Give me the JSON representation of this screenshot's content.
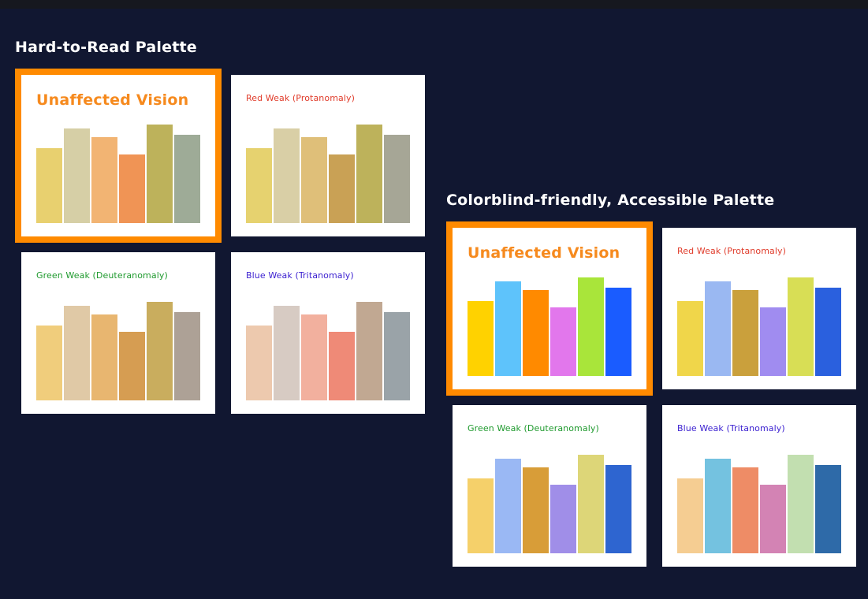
{
  "groups": [
    {
      "title": "Hard-to-Read Palette",
      "cards": [
        {
          "title": "Unaffected Vision",
          "title_color": "#f68a1e",
          "highlighted": true,
          "colors": [
            "#e8d06f",
            "#d6cfa6",
            "#f2b473",
            "#f09455",
            "#bdb25b",
            "#9eab97"
          ]
        },
        {
          "title": "Red Weak (Protanomaly)",
          "title_color": "#e03c2b",
          "highlighted": false,
          "colors": [
            "#e6d26f",
            "#d9cfa6",
            "#dfbf79",
            "#c9a155",
            "#bdb25b",
            "#a6a696"
          ]
        },
        {
          "title": "Green Weak (Deuteranomaly)",
          "title_color": "#1f9a2e",
          "highlighted": false,
          "colors": [
            "#f0cd7c",
            "#e0c9a6",
            "#e8b670",
            "#d69d52",
            "#c9ad5e",
            "#ada196"
          ]
        },
        {
          "title": "Blue Weak (Tritanomaly)",
          "title_color": "#3a1fd0",
          "highlighted": false,
          "colors": [
            "#edc9ae",
            "#d7cbc3",
            "#f2b09e",
            "#ef8a77",
            "#c1a892",
            "#9aa3a8"
          ]
        }
      ]
    },
    {
      "title": "Colorblind-friendly, Accessible Palette",
      "cards": [
        {
          "title": "Unaffected Vision",
          "title_color": "#f68a1e",
          "highlighted": true,
          "colors": [
            "#ffd200",
            "#5ec3fb",
            "#ff8a00",
            "#e277ec",
            "#a9e53a",
            "#1a5cff"
          ]
        },
        {
          "title": "Red Weak (Protanomaly)",
          "title_color": "#e03c2b",
          "highlighted": false,
          "colors": [
            "#f0d64a",
            "#9ab8f2",
            "#caa03c",
            "#a08cf0",
            "#d8de55",
            "#2a60de"
          ]
        },
        {
          "title": "Green Weak (Deuteranomaly)",
          "title_color": "#1f9a2e",
          "highlighted": false,
          "colors": [
            "#f5d06a",
            "#9ab8f4",
            "#d89d38",
            "#a08ee8",
            "#ddd678",
            "#2e65d0"
          ]
        },
        {
          "title": "Blue Weak (Tritanomaly)",
          "title_color": "#3a1fd0",
          "highlighted": false,
          "colors": [
            "#f5cd92",
            "#74c2e0",
            "#ee8c66",
            "#d383b4",
            "#c2dfb0",
            "#2e6aa8"
          ]
        }
      ]
    }
  ],
  "chart_data": [
    {
      "type": "bar",
      "title": "Unaffected Vision",
      "values": [
        95,
        120,
        109,
        87,
        125,
        112
      ]
    },
    {
      "type": "bar",
      "title": "Red Weak (Protanomaly)",
      "values": [
        95,
        120,
        109,
        87,
        125,
        112
      ]
    },
    {
      "type": "bar",
      "title": "Green Weak (Deuteranomaly)",
      "values": [
        95,
        120,
        109,
        87,
        125,
        112
      ]
    },
    {
      "type": "bar",
      "title": "Blue Weak (Tritanomaly)",
      "values": [
        95,
        120,
        109,
        87,
        125,
        112
      ]
    },
    {
      "type": "bar",
      "title": "Unaffected Vision",
      "values": [
        95,
        120,
        109,
        87,
        125,
        112
      ]
    },
    {
      "type": "bar",
      "title": "Red Weak (Protanomaly)",
      "values": [
        95,
        120,
        109,
        87,
        125,
        112
      ]
    },
    {
      "type": "bar",
      "title": "Green Weak (Deuteranomaly)",
      "values": [
        95,
        120,
        109,
        87,
        125,
        112
      ]
    },
    {
      "type": "bar",
      "title": "Blue Weak (Tritanomaly)",
      "values": [
        95,
        120,
        109,
        87,
        125,
        112
      ]
    }
  ]
}
